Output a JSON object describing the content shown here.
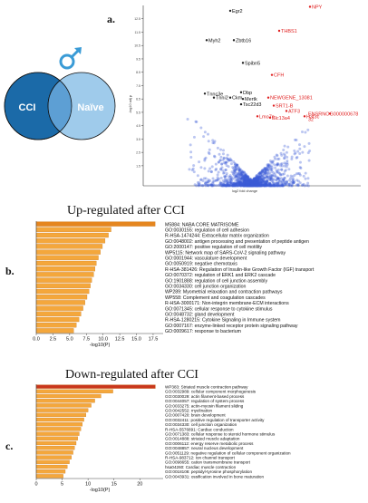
{
  "panel_a": {
    "label": "a.",
    "venn": {
      "left_label": "CCI",
      "right_label": "Naïve",
      "colors": {
        "left": "#1b6aa8",
        "right": "#9fcbeb",
        "overlap": "#5d9fd4",
        "male_symbol": "#3a9bd6"
      }
    }
  },
  "panel_b": {
    "label": "b.",
    "title": "Up-regulated after CCI"
  },
  "panel_c": {
    "label": "c.",
    "title": "Down-regulated after CCI"
  },
  "chart_data": [
    {
      "type": "scatter",
      "name": "volcano",
      "xlabel": "log2 fold change",
      "ylabel": "-log10 adj p",
      "xlim": [
        -6,
        6
      ],
      "ylim": [
        0,
        13.5
      ],
      "y_ticks": [
        1.5,
        2.5,
        3.5,
        4.5,
        5.5,
        6.5,
        7.5,
        8.5,
        9.5,
        10.5,
        11.5,
        12.5
      ],
      "point_color": "#3b5bd6",
      "labels_black": [
        {
          "text": "Egr2",
          "x": -1.2,
          "y": 13.1
        },
        {
          "text": "Myh2",
          "x": -2.5,
          "y": 10.9
        },
        {
          "text": "Zbtb16",
          "x": -1.0,
          "y": 10.9
        },
        {
          "text": "Spibn5",
          "x": -0.5,
          "y": 9.2
        },
        {
          "text": "Tnnc3e",
          "x": -2.6,
          "y": 6.9
        },
        {
          "text": "Tnni2",
          "x": -2.1,
          "y": 6.6
        },
        {
          "text": "Ckm",
          "x": -1.2,
          "y": 6.6
        },
        {
          "text": "Dbp",
          "x": -0.6,
          "y": 7.0
        },
        {
          "text": "Mertk",
          "x": -0.5,
          "y": 6.5
        },
        {
          "text": "Tsc22d3",
          "x": -0.6,
          "y": 6.1
        }
      ],
      "labels_red": [
        {
          "text": "NPY",
          "x": 3.2,
          "y": 13.4
        },
        {
          "text": "THBS1",
          "x": 1.5,
          "y": 11.6
        },
        {
          "text": "CFH",
          "x": 1.1,
          "y": 8.3
        },
        {
          "text": "NEWGENE_13081",
          "x": 0.9,
          "y": 6.6
        },
        {
          "text": "ENSRNOG00000067832",
          "x": 4.3,
          "y": 5.4
        },
        {
          "text": "SRT1-B",
          "x": 1.2,
          "y": 6.0
        },
        {
          "text": "ATF3",
          "x": 1.9,
          "y": 5.6
        },
        {
          "text": "Lmo7p",
          "x": 0.3,
          "y": 5.2
        },
        {
          "text": "Slc13a4",
          "x": 1.0,
          "y": 5.1
        },
        {
          "text": "H3f3c",
          "x": 2.9,
          "y": 5.2
        }
      ]
    },
    {
      "type": "bar",
      "name": "up",
      "orientation": "horizontal",
      "categories": [
        "M5884: NABA CORE MATRISOME",
        "GO:0030155: regulation of cell adhesion",
        "R-HSA-1474244: Extracellular matrix organization",
        "GO:0048002: antigen processing and presentation of peptide antigen",
        "GO:2000147: positive regulation of cell motility",
        "WP5115: Network map of SARS-CoV-2 signaling pathway",
        "GO:0001944: vasculature development",
        "GO:0050919: negative chemotaxis",
        "R-HSA-381426: Regulation of Insulin-like Growth Factor (IGF) transport",
        "GO:0070372: regulation of ERK1 and ERK2 cascade",
        "GO:1901888: regulation of cell junction assembly",
        "GO:0034330: cell junction organization",
        "WP289: Myometrial relaxation and contraction pathways",
        "WP558: Complement and coagulation cascades",
        "R-HSA-3000171: Non-integrin membrane-ECM interactions",
        "GO:0071345: cellular response to cytokine stimulus",
        "GO:0048732: gland development",
        "R-HSA-1280215: Cytokine Signaling in Immune system",
        "GO:0007167: enzyme-linked receptor protein signaling pathway",
        "GO:0009617: response to bacterium"
      ],
      "values": [
        17.8,
        11.2,
        10.8,
        10.3,
        9.9,
        9.6,
        9.3,
        9.0,
        8.8,
        8.6,
        8.3,
        8.1,
        7.9,
        7.6,
        7.3,
        7.0,
        6.7,
        6.4,
        6.0,
        5.6
      ],
      "xlabel": "-log10(P)",
      "xlim": [
        0,
        19
      ],
      "x_ticks": [
        0.0,
        2.5,
        5.0,
        7.5,
        10.0,
        12.5,
        15.0,
        17.5
      ],
      "x_tick_labels": [
        "0.0",
        "2.5",
        "5.0",
        "7.5",
        "10.0",
        "12.5",
        "15.0",
        "17.5"
      ]
    },
    {
      "type": "bar",
      "name": "down",
      "orientation": "horizontal",
      "categories": [
        "WP383: Striated muscle contraction pathway",
        "GO:0032989: cellular component morphogenesis",
        "GO:0030029: actin filament-based process",
        "GO:0044057: regulation of system process",
        "GO:0033275: actin-myosin filament sliding",
        "GO:0042552: myelination",
        "GO:0007420: brain development",
        "GO:0032411: positive regulation of transporter activity",
        "GO:0034330: cell junction organization",
        "R-HSA-5576891: Cardiac conduction",
        "GO:0071383: cellular response to steroid hormone stimulus",
        "GO:0014888: striated muscle adaptation",
        "GO:0006112: energy reserve metabolic process",
        "GO:0048857: neural nucleus development",
        "GO:0051129: negative regulation of cellular component organization",
        "R-HSA-983712: Ion channel transport",
        "GO:0098655: cation transmembrane transport",
        "hsa04260: Cardiac muscle contraction",
        "GO:0018108: peptidyl-tyrosine phosphorylation",
        "GO:0043931: ossification involved in bone maturation"
      ],
      "values": [
        23.0,
        14.8,
        12.5,
        11.3,
        10.6,
        10.0,
        9.6,
        9.2,
        8.9,
        8.6,
        8.3,
        8.0,
        7.7,
        7.4,
        7.1,
        6.8,
        6.4,
        6.0,
        5.6,
        5.2
      ],
      "xlabel": "-log10(P)",
      "xlim": [
        0,
        24.5
      ],
      "x_ticks": [
        0,
        5,
        10,
        15,
        20
      ],
      "x_tick_labels": [
        "0",
        "5",
        "10",
        "15",
        "20"
      ]
    }
  ]
}
